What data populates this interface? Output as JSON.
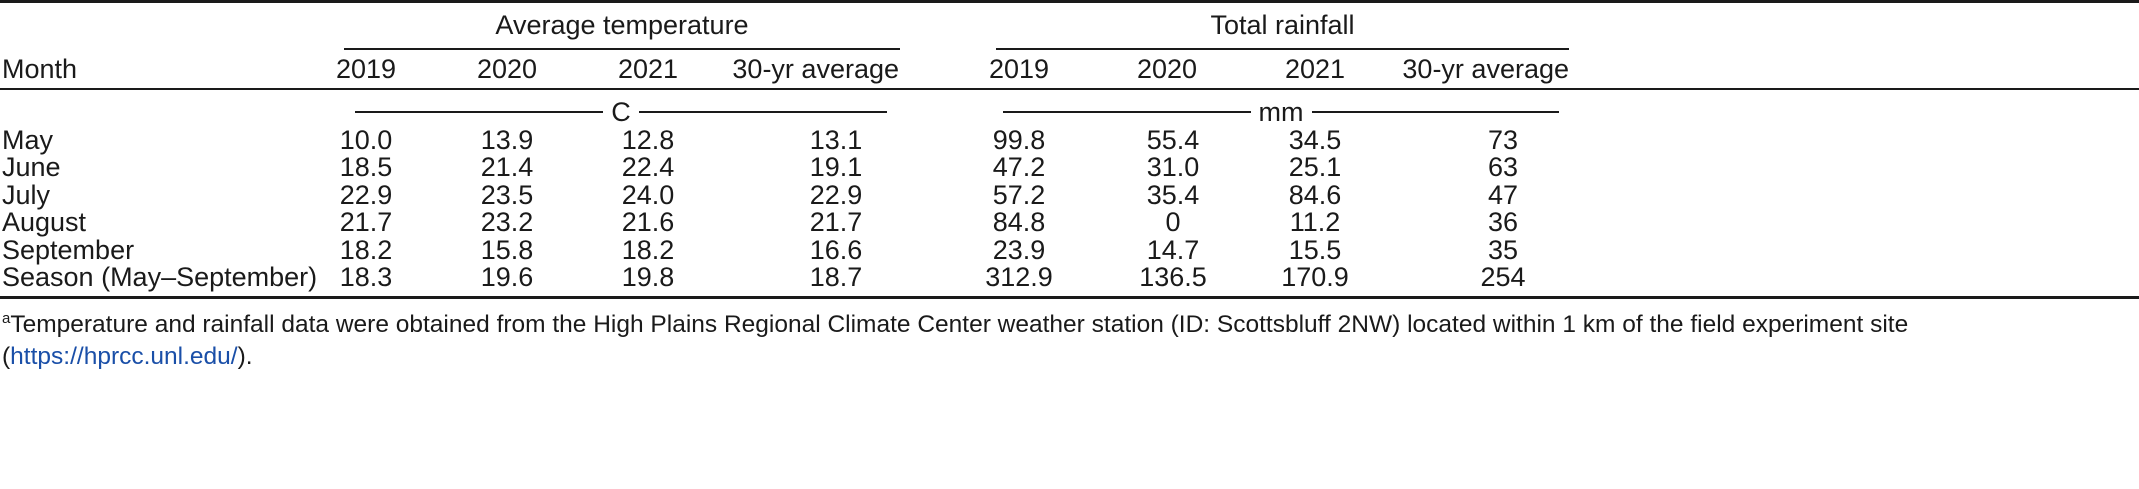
{
  "table": {
    "group_headers": {
      "temperature": "Average temperature",
      "rainfall": "Total rainfall"
    },
    "column_headers": {
      "month": "Month",
      "temperature": [
        "2019",
        "2020",
        "2021",
        "30-yr average"
      ],
      "rainfall": [
        "2019",
        "2020",
        "2021",
        "30-yr average"
      ]
    },
    "units": {
      "temperature": "C",
      "rainfall": "mm"
    },
    "rows": [
      {
        "month": "May",
        "temperature": [
          "10.0",
          "13.9",
          "12.8",
          "13.1"
        ],
        "rainfall": [
          "99.8",
          "55.4",
          "34.5",
          "73"
        ]
      },
      {
        "month": "June",
        "temperature": [
          "18.5",
          "21.4",
          "22.4",
          "19.1"
        ],
        "rainfall": [
          "47.2",
          "31.0",
          "25.1",
          "63"
        ]
      },
      {
        "month": "July",
        "temperature": [
          "22.9",
          "23.5",
          "24.0",
          "22.9"
        ],
        "rainfall": [
          "57.2",
          "35.4",
          "84.6",
          "47"
        ]
      },
      {
        "month": "August",
        "temperature": [
          "21.7",
          "23.2",
          "21.6",
          "21.7"
        ],
        "rainfall": [
          "84.8",
          "0",
          "11.2",
          "36"
        ]
      },
      {
        "month": "September",
        "temperature": [
          "18.2",
          "15.8",
          "18.2",
          "16.6"
        ],
        "rainfall": [
          "23.9",
          "14.7",
          "15.5",
          "35"
        ]
      },
      {
        "month": "Season (May–September)",
        "temperature": [
          "18.3",
          "19.6",
          "19.8",
          "18.7"
        ],
        "rainfall": [
          "312.9",
          "136.5",
          "170.9",
          "254"
        ]
      }
    ]
  },
  "footnote": {
    "marker": "a",
    "text": "Temperature and rainfall data were obtained from the High Plains Regional Climate Center weather station (ID: Scottsbluff 2NW) located within 1 km of the field experiment site (",
    "link_text": "https://hprcc.unl.edu/",
    "suffix": ")."
  }
}
